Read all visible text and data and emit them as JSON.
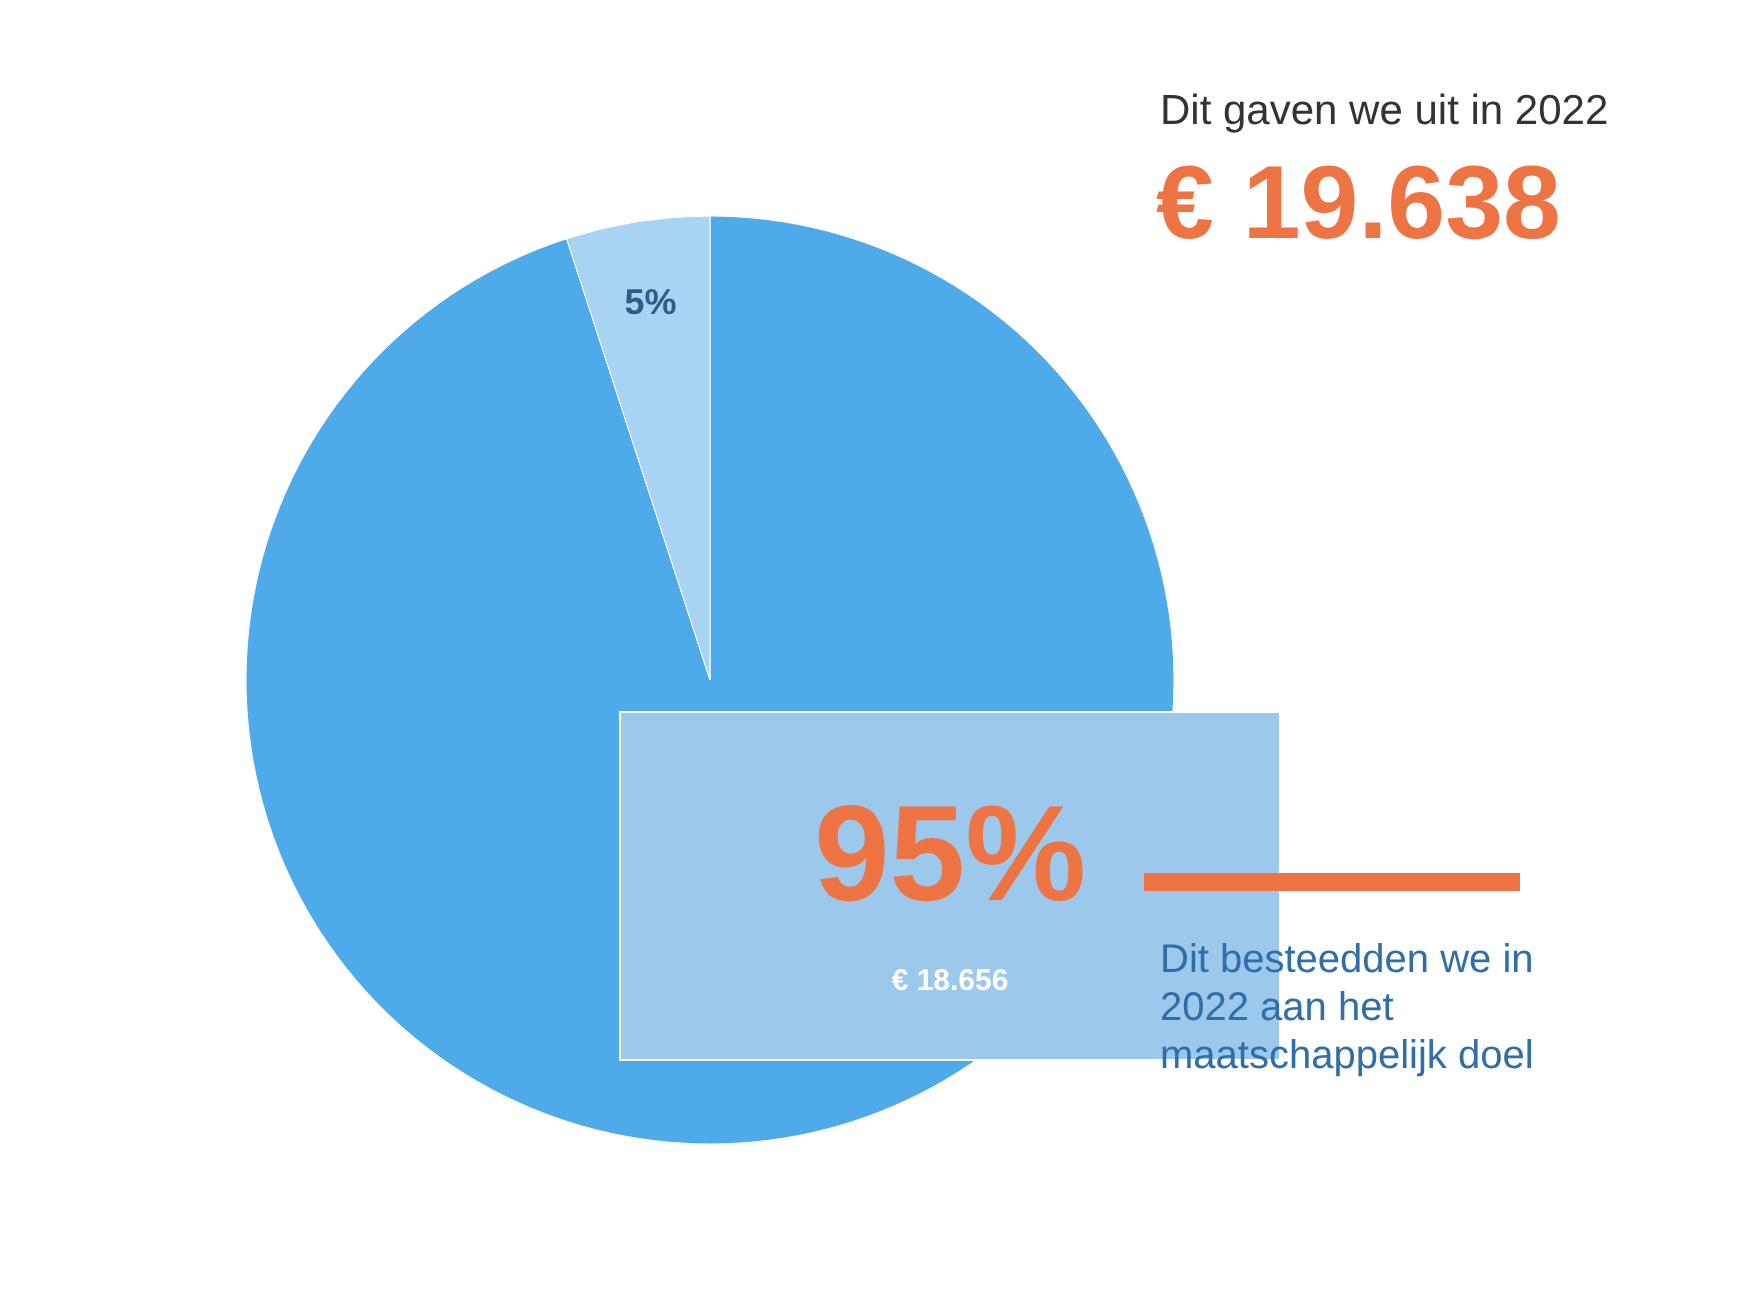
{
  "chart_data": {
    "type": "pie",
    "title": "Dit gaven we uit in 2022",
    "subtitle": "€ 19.638",
    "categories": [
      null,
      null
    ],
    "values": [
      95,
      5
    ],
    "colors": [
      "#4eaae8",
      "#a9d3f2"
    ],
    "value_labels": [
      "95%",
      "5%"
    ],
    "annotations": [
      "€  18.656",
      "Dit besteedden we in 2022 aan het maatschappelijk doel"
    ]
  }
}
